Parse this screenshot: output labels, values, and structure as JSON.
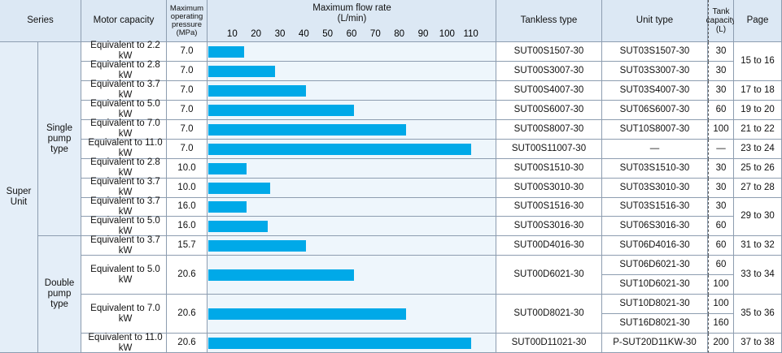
{
  "table": {
    "headers": {
      "series": "Series",
      "motor": "Motor capacity",
      "pressure": "Maximum operating pressure (MPa)",
      "flow": "Maximum flow rate (L/min)",
      "tankless": "Tankless type",
      "unit": "Unit type",
      "tank": "Tank capacity (L)",
      "page": "Page"
    },
    "flow_xlim": [
      0,
      120
    ],
    "flow_ticks": [
      10,
      20,
      30,
      40,
      50,
      60,
      70,
      80,
      90,
      100,
      110
    ],
    "series": "Super Unit",
    "groups": [
      {
        "type": "Single pump type",
        "rows": [
          {
            "motor": "Equivalent to 2.2 kW",
            "pressure": "7.0",
            "flow": 15,
            "tankless": "SUT00S1507-30",
            "units": [
              {
                "unit": "SUT03S1507-30",
                "tank": "30"
              }
            ],
            "page": "15 to 16"
          },
          {
            "motor": "Equivalent to 2.8 kW",
            "pressure": "7.0",
            "flow": 28,
            "tankless": "SUT00S3007-30",
            "units": [
              {
                "unit": "SUT03S3007-30",
                "tank": "30"
              }
            ]
          },
          {
            "motor": "Equivalent to 3.7 kW",
            "pressure": "7.0",
            "flow": 41,
            "tankless": "SUT00S4007-30",
            "units": [
              {
                "unit": "SUT03S4007-30",
                "tank": "30"
              }
            ],
            "page": "17 to 18"
          },
          {
            "motor": "Equivalent to 5.0 kW",
            "pressure": "7.0",
            "flow": 61,
            "tankless": "SUT00S6007-30",
            "units": [
              {
                "unit": "SUT06S6007-30",
                "tank": "60"
              }
            ],
            "page": "19 to 20"
          },
          {
            "motor": "Equivalent to 7.0 kW",
            "pressure": "7.0",
            "flow": 83,
            "tankless": "SUT00S8007-30",
            "units": [
              {
                "unit": "SUT10S8007-30",
                "tank": "100"
              }
            ],
            "page": "21 to 22"
          },
          {
            "motor": "Equivalent to 11.0 kW",
            "pressure": "7.0",
            "flow": 110,
            "tankless": "SUT00S11007-30",
            "units": [
              {
                "unit": "—",
                "tank": "—"
              }
            ],
            "page": "23 to 24"
          },
          {
            "motor": "Equivalent to 2.8 kW",
            "pressure": "10.0",
            "flow": 16,
            "tankless": "SUT00S1510-30",
            "units": [
              {
                "unit": "SUT03S1510-30",
                "tank": "30"
              }
            ],
            "page": "25 to 26"
          },
          {
            "motor": "Equivalent to 3.7 kW",
            "pressure": "10.0",
            "flow": 26,
            "tankless": "SUT00S3010-30",
            "units": [
              {
                "unit": "SUT03S3010-30",
                "tank": "30"
              }
            ],
            "page": "27 to 28"
          },
          {
            "motor": "Equivalent to 3.7 kW",
            "pressure": "16.0",
            "flow": 16,
            "tankless": "SUT00S1516-30",
            "units": [
              {
                "unit": "SUT03S1516-30",
                "tank": "30"
              }
            ],
            "page": "29 to 30"
          },
          {
            "motor": "Equivalent to 5.0 kW",
            "pressure": "16.0",
            "flow": 25,
            "tankless": "SUT00S3016-30",
            "units": [
              {
                "unit": "SUT06S3016-30",
                "tank": "60"
              }
            ]
          }
        ]
      },
      {
        "type": "Double pump type",
        "rows": [
          {
            "motor": "Equivalent to 3.7 kW",
            "pressure": "15.7",
            "flow": 41,
            "tankless": "SUT00D4016-30",
            "units": [
              {
                "unit": "SUT06D4016-30",
                "tank": "60"
              }
            ],
            "page": "31 to 32"
          },
          {
            "motor": "Equivalent to 5.0 kW",
            "pressure": "20.6",
            "flow": 61,
            "tankless": "SUT00D6021-30",
            "units": [
              {
                "unit": "SUT06D6021-30",
                "tank": "60"
              },
              {
                "unit": "SUT10D6021-30",
                "tank": "100"
              }
            ],
            "page": "33 to 34"
          },
          {
            "motor": "Equivalent to 7.0 kW",
            "pressure": "20.6",
            "flow": 83,
            "tankless": "SUT00D8021-30",
            "units": [
              {
                "unit": "SUT10D8021-30",
                "tank": "100"
              },
              {
                "unit": "SUT16D8021-30",
                "tank": "160"
              }
            ],
            "page": "35 to 36"
          },
          {
            "motor": "Equivalent to 11.0 kW",
            "pressure": "20.6",
            "flow": 110,
            "tankless": "SUT00D11021-30",
            "units": [
              {
                "unit": "P-SUT20D11KW-30",
                "tank": "200"
              }
            ],
            "page": "37 to 38"
          }
        ]
      }
    ]
  }
}
